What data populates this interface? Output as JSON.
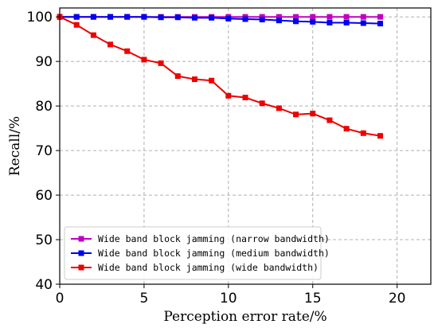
{
  "chart_data": {
    "type": "line",
    "xlabel": "Perception error rate/%",
    "ylabel": "Recall/%",
    "xlim": [
      0,
      22
    ],
    "ylim": [
      40,
      102
    ],
    "xticks": [
      0,
      5,
      10,
      15,
      20
    ],
    "yticks": [
      40,
      50,
      60,
      70,
      80,
      90,
      100
    ],
    "grid": true,
    "legend_position": "bottom-left",
    "x": [
      0,
      1,
      2,
      3,
      4,
      5,
      6,
      7,
      8,
      9,
      10,
      11,
      12,
      13,
      14,
      15,
      16,
      17,
      18,
      19
    ],
    "series": [
      {
        "name": "Wide band block jamming (narrow bandwidth)",
        "color": "#c000c0",
        "marker": "square",
        "values": [
          100,
          100,
          100,
          100,
          100,
          100,
          100,
          100,
          100,
          100,
          100,
          100,
          100,
          100,
          100,
          100,
          100,
          100,
          100,
          100
        ]
      },
      {
        "name": "Wide band block jamming (medium bandwidth)",
        "color": "#0000ee",
        "marker": "square",
        "values": [
          100,
          100,
          100,
          100,
          100,
          100,
          99.9,
          99.9,
          99.8,
          99.8,
          99.6,
          99.5,
          99.4,
          99.2,
          99.0,
          98.9,
          98.7,
          98.7,
          98.6,
          98.5
        ]
      },
      {
        "name": "Wide band block jamming (wide bandwidth)",
        "color": "#ee0000",
        "marker": "square",
        "values": [
          100,
          98.2,
          95.9,
          93.8,
          92.3,
          90.4,
          89.6,
          86.7,
          86.0,
          85.7,
          82.3,
          81.9,
          80.6,
          79.5,
          78.1,
          78.3,
          76.8,
          74.9,
          73.9,
          73.3
        ]
      }
    ]
  }
}
